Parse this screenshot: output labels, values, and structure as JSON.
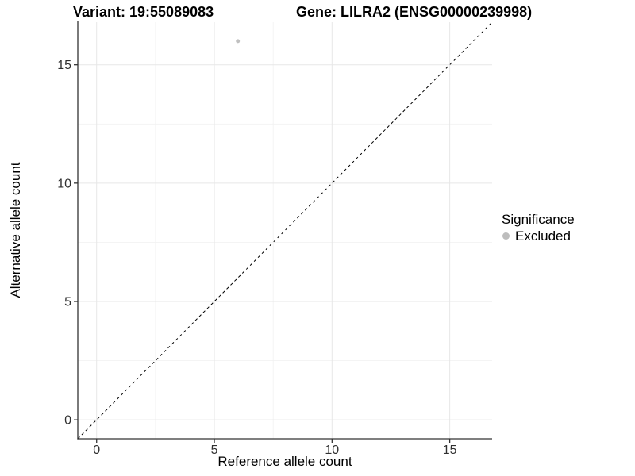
{
  "header": {
    "variant_title": "Variant: 19:55089083",
    "gene_title": "Gene: LILRA2 (ENSG00000239998)"
  },
  "chart_data": {
    "type": "scatter",
    "title_left": "Variant: 19:55089083",
    "title_right": "Gene: LILRA2 (ENSG00000239998)",
    "xlabel": "Reference allele count",
    "ylabel": "Alternative allele count",
    "xlim": [
      -0.8,
      16.8
    ],
    "ylim": [
      -0.8,
      16.8
    ],
    "x_ticks": [
      0,
      5,
      10,
      15
    ],
    "y_ticks": [
      0,
      5,
      10,
      15
    ],
    "x_minor_ticks": [
      2.5,
      7.5,
      12.5
    ],
    "y_minor_ticks": [
      2.5,
      7.5,
      12.5
    ],
    "grid": "major+minor",
    "series": [
      {
        "name": "Excluded",
        "color": "#c0c0c0",
        "point_radius": 2.5,
        "points": [
          [
            6,
            16
          ]
        ]
      }
    ],
    "reference_line": {
      "kind": "identity-diagonal",
      "x1": -0.8,
      "y1": -0.8,
      "x2": 16.8,
      "y2": 16.8,
      "style": "dashed",
      "color": "#000000"
    },
    "legend": {
      "title": "Significance",
      "position": "right",
      "items": [
        {
          "label": "Excluded",
          "color": "#bdbdbd"
        }
      ]
    }
  },
  "colors": {
    "background": "#ffffff",
    "grid_major": "#e7e7e7",
    "grid_minor": "#f2f2f2",
    "axis_line": "#333333",
    "tick_mark": "#333333",
    "tick_label": "#303030",
    "title_text": "#000000",
    "point": "#c0c0c0"
  }
}
